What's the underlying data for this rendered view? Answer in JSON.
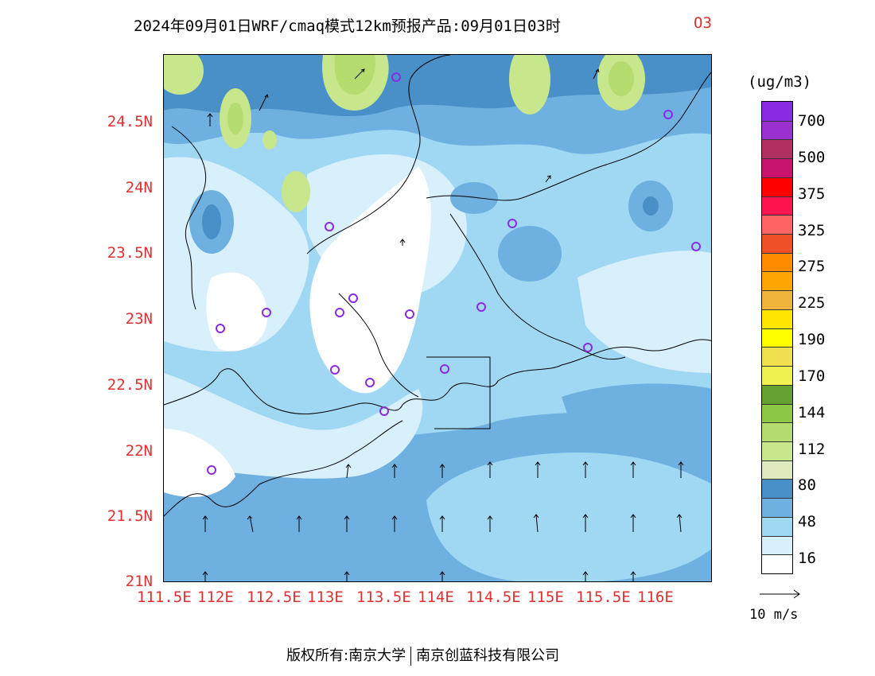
{
  "title": {
    "main": "2024年09月01日WRF/cmaq模式12km预报产品:09月01日03时",
    "species": "O3"
  },
  "colorbar": {
    "unit": "(ug/m3)",
    "labels": [
      "700",
      "500",
      "375",
      "325",
      "275",
      "225",
      "190",
      "170",
      "144",
      "112",
      "80",
      "48",
      "16"
    ],
    "colors": [
      "#8a2be2",
      "#9b30d0",
      "#b03060",
      "#c8146e",
      "#ff0000",
      "#ff1450",
      "#ff6464",
      "#f05028",
      "#ff8c00",
      "#ffa500",
      "#f0b43c",
      "#ffe600",
      "#ffff00",
      "#f0e050",
      "#f0f050",
      "#64a032",
      "#8cc846",
      "#b4dc6e",
      "#c8e68c",
      "#dceabe",
      "#4a90c8",
      "#6eb0e0",
      "#a0d8f4",
      "#d8f0fc",
      "#ffffff"
    ]
  },
  "axes": {
    "lat_labels": [
      "24.5N",
      "24N",
      "23.5N",
      "23N",
      "22.5N",
      "22N",
      "21.5N",
      "21N"
    ],
    "lon_labels": [
      "111.5E",
      "112E",
      "112.5E",
      "113E",
      "113.5E",
      "114E",
      "114.5E",
      "115E",
      "115.5E",
      "116E"
    ]
  },
  "wind_reference": {
    "label": "10 m/s"
  },
  "copyright": {
    "prefix": "版权所有:南京大学",
    "suffix": "南京创蓝科技有限公司"
  }
}
